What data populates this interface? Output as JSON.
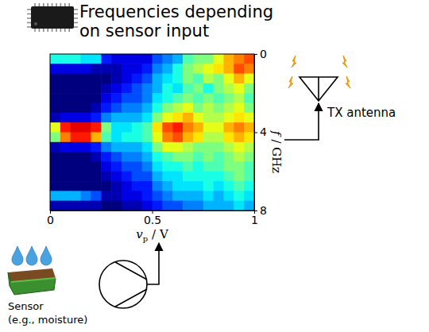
{
  "title": [
    "Frequencies depending",
    "on sensor input"
  ],
  "antenna_label": "TX antenna",
  "sensor_label": [
    "Sensor",
    "(e.g., moisture)"
  ],
  "chart_data": {
    "type": "heatmap",
    "xlabel": {
      "var": "v",
      "sub": "p",
      "unit": "/ V"
    },
    "ylabel": {
      "var": "f",
      "unit": "/ GHz"
    },
    "xlim": [
      0,
      1
    ],
    "ylim": [
      0,
      8
    ],
    "xticks": [
      0,
      0.5,
      1
    ],
    "yticks": [
      0,
      4,
      8
    ],
    "zlim": [
      0,
      1
    ],
    "xbins": [
      0,
      0.05,
      0.1,
      0.15,
      0.2,
      0.25,
      0.3,
      0.35,
      0.4,
      0.45,
      0.5,
      0.55,
      0.6,
      0.65,
      0.7,
      0.75,
      0.8,
      0.85,
      0.9,
      0.95,
      1
    ],
    "ybins": [
      0,
      0.5,
      1,
      1.5,
      2,
      2.5,
      3,
      3.5,
      4,
      4.5,
      5,
      5.5,
      6,
      6.5,
      7,
      7.5,
      8
    ],
    "cells": [
      [
        0.4,
        0.4,
        0.4,
        0.35,
        0.35,
        0.15,
        0.1,
        0.1,
        0.1,
        0.1,
        0.2,
        0.25,
        0.3,
        0.45,
        0.5,
        0.5,
        0.6,
        0.7,
        0.75,
        0.8
      ],
      [
        0.1,
        0.1,
        0.1,
        0.1,
        0.05,
        0.05,
        0.05,
        0.1,
        0.1,
        0.15,
        0.25,
        0.3,
        0.4,
        0.5,
        0.55,
        0.6,
        0.65,
        0.7,
        0.8,
        0.75
      ],
      [
        0,
        0,
        0,
        0,
        0,
        0,
        0.05,
        0.1,
        0.15,
        0.2,
        0.3,
        0.35,
        0.4,
        0.5,
        0.45,
        0.55,
        0.5,
        0.6,
        0.7,
        0.6
      ],
      [
        0,
        0,
        0,
        0,
        0,
        0.05,
        0.1,
        0.15,
        0.2,
        0.25,
        0.3,
        0.4,
        0.35,
        0.45,
        0.5,
        0.4,
        0.5,
        0.55,
        0.6,
        0.5
      ],
      [
        0,
        0,
        0,
        0,
        0,
        0.1,
        0.15,
        0.2,
        0.2,
        0.25,
        0.35,
        0.4,
        0.45,
        0.5,
        0.45,
        0.5,
        0.45,
        0.5,
        0.55,
        0.45
      ],
      [
        0,
        0,
        0,
        0,
        0.05,
        0.15,
        0.2,
        0.25,
        0.25,
        0.3,
        0.4,
        0.5,
        0.55,
        0.6,
        0.5,
        0.55,
        0.5,
        0.55,
        0.6,
        0.5
      ],
      [
        0.05,
        0.1,
        0.1,
        0.1,
        0.15,
        0.25,
        0.3,
        0.3,
        0.3,
        0.35,
        0.5,
        0.6,
        0.65,
        0.7,
        0.6,
        0.55,
        0.55,
        0.6,
        0.65,
        0.6
      ],
      [
        0.6,
        0.85,
        0.9,
        0.9,
        0.85,
        0.5,
        0.35,
        0.35,
        0.4,
        0.45,
        0.65,
        0.8,
        0.85,
        0.75,
        0.7,
        0.6,
        0.6,
        0.7,
        0.75,
        0.7
      ],
      [
        0.5,
        0.75,
        0.85,
        0.85,
        0.7,
        0.45,
        0.35,
        0.4,
        0.4,
        0.45,
        0.6,
        0.75,
        0.8,
        0.7,
        0.65,
        0.55,
        0.55,
        0.65,
        0.7,
        0.65
      ],
      [
        0.05,
        0.1,
        0.1,
        0.1,
        0.15,
        0.25,
        0.3,
        0.3,
        0.3,
        0.35,
        0.5,
        0.6,
        0.6,
        0.55,
        0.5,
        0.5,
        0.5,
        0.55,
        0.6,
        0.55
      ],
      [
        0,
        0,
        0,
        0,
        0.05,
        0.15,
        0.2,
        0.25,
        0.25,
        0.3,
        0.4,
        0.45,
        0.5,
        0.5,
        0.45,
        0.5,
        0.45,
        0.5,
        0.55,
        0.5
      ],
      [
        0,
        0,
        0,
        0,
        0,
        0.1,
        0.15,
        0.2,
        0.2,
        0.25,
        0.35,
        0.4,
        0.4,
        0.45,
        0.4,
        0.45,
        0.45,
        0.5,
        0.5,
        0.45
      ],
      [
        0,
        0,
        0,
        0,
        0,
        0.05,
        0.1,
        0.15,
        0.2,
        0.2,
        0.3,
        0.35,
        0.35,
        0.4,
        0.4,
        0.4,
        0.4,
        0.45,
        0.5,
        0.45
      ],
      [
        0,
        0,
        0,
        0,
        0,
        0,
        0.05,
        0.1,
        0.15,
        0.15,
        0.25,
        0.3,
        0.35,
        0.35,
        0.35,
        0.4,
        0.35,
        0.4,
        0.45,
        0.4
      ],
      [
        0.3,
        0.3,
        0.3,
        0.25,
        0.2,
        0.05,
        0.05,
        0.1,
        0.1,
        0.15,
        0.2,
        0.25,
        0.3,
        0.3,
        0.3,
        0.35,
        0.3,
        0.35,
        0.4,
        0.35
      ],
      [
        0.05,
        0.05,
        0.05,
        0.05,
        0.05,
        0,
        0,
        0.05,
        0.05,
        0.1,
        0.15,
        0.2,
        0.2,
        0.25,
        0.25,
        0.3,
        0.3,
        0.3,
        0.35,
        0.3
      ]
    ]
  }
}
